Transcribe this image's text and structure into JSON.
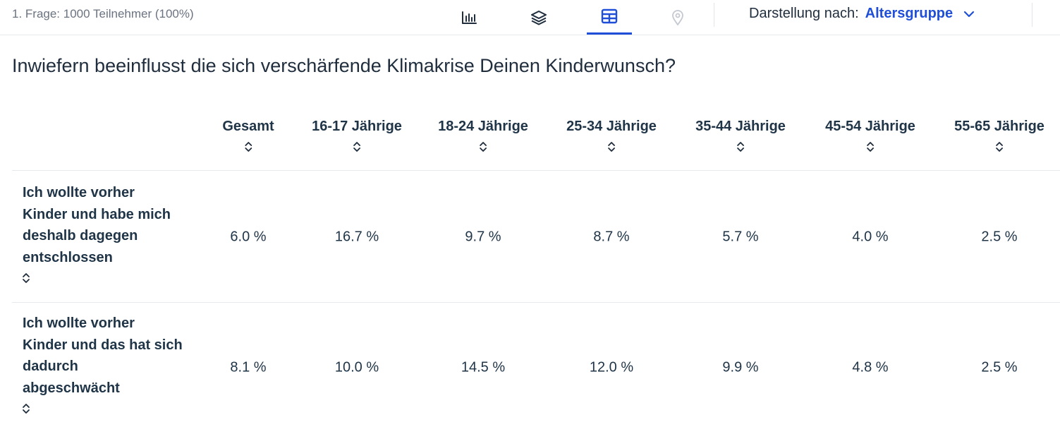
{
  "topbar": {
    "meta": "1. Frage: 1000 Teilnehmer (100%)",
    "icons": [
      "bar-chart-icon",
      "layers-icon",
      "table-icon",
      "location-pin-icon"
    ],
    "active_view": "table",
    "display_by_label": "Darstellung nach:",
    "display_by_value": "Altersgruppe"
  },
  "question": "Inwiefern beeinflusst die sich verschärfende Klimakrise Deinen Kinderwunsch?",
  "table": {
    "columns": [
      "Gesamt",
      "16-17 Jährige",
      "18-24 Jährige",
      "25-34 Jährige",
      "35-44 Jährige",
      "45-54 Jährige",
      "55-65 Jährige"
    ],
    "rows": [
      {
        "label_lines": [
          "Ich wollte vorher",
          "Kinder und habe mich",
          "deshalb dagegen",
          "entschlossen"
        ],
        "values": [
          "6.0 %",
          "16.7 %",
          "9.7 %",
          "8.7 %",
          "5.7 %",
          "4.0 %",
          "2.5 %"
        ]
      },
      {
        "label_lines": [
          "Ich wollte vorher",
          "Kinder und das hat sich",
          "dadurch",
          "abgeschwächt"
        ],
        "values": [
          "8.1 %",
          "10.0 %",
          "14.5 %",
          "12.0 %",
          "9.9 %",
          "4.8 %",
          "2.5 %"
        ]
      }
    ]
  },
  "colors": {
    "accent": "#1f4fd8",
    "text": "#1f3447",
    "muted": "#6b7380",
    "divider": "#e6e9ee"
  }
}
